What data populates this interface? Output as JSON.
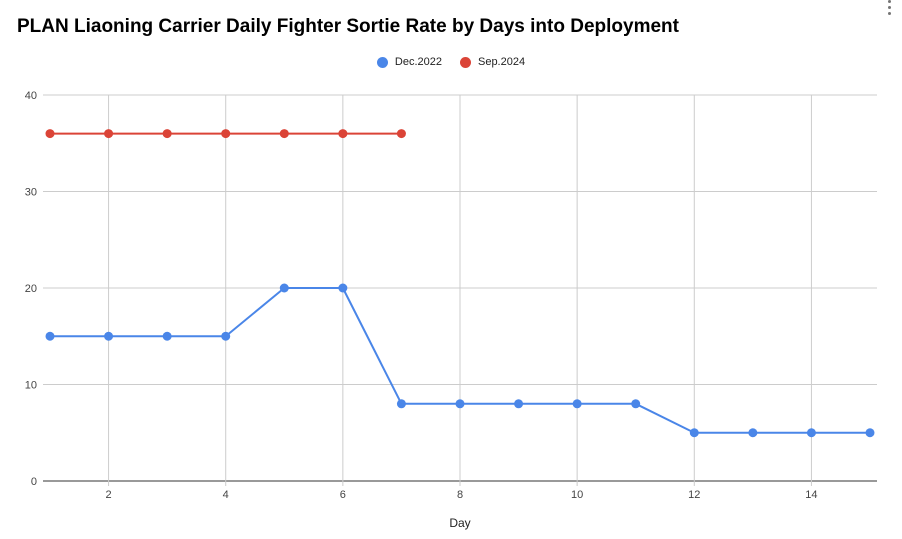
{
  "chart_data": {
    "type": "line",
    "title": "PLAN Liaoning Carrier Daily Fighter Sortie Rate by Days into Deployment",
    "xlabel": "Day",
    "ylabel": "",
    "xlim": [
      1,
      15
    ],
    "ylim": [
      0,
      40
    ],
    "xticks": [
      2,
      4,
      6,
      8,
      10,
      12,
      14
    ],
    "yticks": [
      0,
      10,
      20,
      30,
      40
    ],
    "grid": true,
    "legend_position": "top-center",
    "series": [
      {
        "name": "Dec.2022",
        "color": "#4a86e8",
        "x": [
          1,
          2,
          3,
          4,
          5,
          6,
          7,
          8,
          9,
          10,
          11,
          12,
          13,
          14,
          15
        ],
        "y": [
          15,
          15,
          15,
          15,
          20,
          20,
          8,
          8,
          8,
          8,
          8,
          5,
          5,
          5,
          5
        ]
      },
      {
        "name": "Sep.2024",
        "color": "#db4437",
        "x": [
          1,
          2,
          3,
          4,
          5,
          6,
          7
        ],
        "y": [
          36,
          36,
          36,
          36,
          36,
          36,
          36
        ]
      }
    ]
  }
}
